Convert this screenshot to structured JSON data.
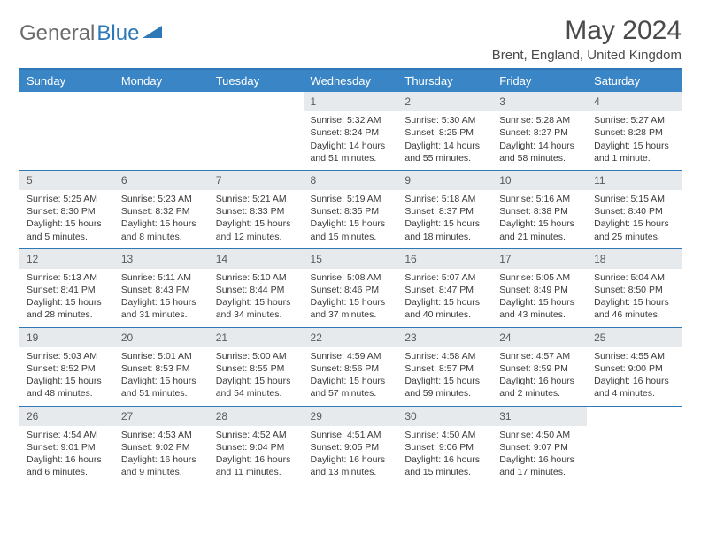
{
  "logo": {
    "text1": "General",
    "text2": "Blue"
  },
  "title": "May 2024",
  "location": "Brent, England, United Kingdom",
  "colors": {
    "header_bg": "#3a85c6",
    "header_text": "#ffffff",
    "daynum_bg": "#e7eaed",
    "border": "#2f78b7",
    "body_text": "#3a3a3a",
    "title_text": "#4a4a4a",
    "logo_gray": "#6b6b6b",
    "logo_blue": "#2f78b7"
  },
  "daysOfWeek": [
    "Sunday",
    "Monday",
    "Tuesday",
    "Wednesday",
    "Thursday",
    "Friday",
    "Saturday"
  ],
  "weeks": [
    [
      null,
      null,
      null,
      {
        "n": "1",
        "sr": "5:32 AM",
        "ss": "8:24 PM",
        "dl": "14 hours and 51 minutes."
      },
      {
        "n": "2",
        "sr": "5:30 AM",
        "ss": "8:25 PM",
        "dl": "14 hours and 55 minutes."
      },
      {
        "n": "3",
        "sr": "5:28 AM",
        "ss": "8:27 PM",
        "dl": "14 hours and 58 minutes."
      },
      {
        "n": "4",
        "sr": "5:27 AM",
        "ss": "8:28 PM",
        "dl": "15 hours and 1 minute."
      }
    ],
    [
      {
        "n": "5",
        "sr": "5:25 AM",
        "ss": "8:30 PM",
        "dl": "15 hours and 5 minutes."
      },
      {
        "n": "6",
        "sr": "5:23 AM",
        "ss": "8:32 PM",
        "dl": "15 hours and 8 minutes."
      },
      {
        "n": "7",
        "sr": "5:21 AM",
        "ss": "8:33 PM",
        "dl": "15 hours and 12 minutes."
      },
      {
        "n": "8",
        "sr": "5:19 AM",
        "ss": "8:35 PM",
        "dl": "15 hours and 15 minutes."
      },
      {
        "n": "9",
        "sr": "5:18 AM",
        "ss": "8:37 PM",
        "dl": "15 hours and 18 minutes."
      },
      {
        "n": "10",
        "sr": "5:16 AM",
        "ss": "8:38 PM",
        "dl": "15 hours and 21 minutes."
      },
      {
        "n": "11",
        "sr": "5:15 AM",
        "ss": "8:40 PM",
        "dl": "15 hours and 25 minutes."
      }
    ],
    [
      {
        "n": "12",
        "sr": "5:13 AM",
        "ss": "8:41 PM",
        "dl": "15 hours and 28 minutes."
      },
      {
        "n": "13",
        "sr": "5:11 AM",
        "ss": "8:43 PM",
        "dl": "15 hours and 31 minutes."
      },
      {
        "n": "14",
        "sr": "5:10 AM",
        "ss": "8:44 PM",
        "dl": "15 hours and 34 minutes."
      },
      {
        "n": "15",
        "sr": "5:08 AM",
        "ss": "8:46 PM",
        "dl": "15 hours and 37 minutes."
      },
      {
        "n": "16",
        "sr": "5:07 AM",
        "ss": "8:47 PM",
        "dl": "15 hours and 40 minutes."
      },
      {
        "n": "17",
        "sr": "5:05 AM",
        "ss": "8:49 PM",
        "dl": "15 hours and 43 minutes."
      },
      {
        "n": "18",
        "sr": "5:04 AM",
        "ss": "8:50 PM",
        "dl": "15 hours and 46 minutes."
      }
    ],
    [
      {
        "n": "19",
        "sr": "5:03 AM",
        "ss": "8:52 PM",
        "dl": "15 hours and 48 minutes."
      },
      {
        "n": "20",
        "sr": "5:01 AM",
        "ss": "8:53 PM",
        "dl": "15 hours and 51 minutes."
      },
      {
        "n": "21",
        "sr": "5:00 AM",
        "ss": "8:55 PM",
        "dl": "15 hours and 54 minutes."
      },
      {
        "n": "22",
        "sr": "4:59 AM",
        "ss": "8:56 PM",
        "dl": "15 hours and 57 minutes."
      },
      {
        "n": "23",
        "sr": "4:58 AM",
        "ss": "8:57 PM",
        "dl": "15 hours and 59 minutes."
      },
      {
        "n": "24",
        "sr": "4:57 AM",
        "ss": "8:59 PM",
        "dl": "16 hours and 2 minutes."
      },
      {
        "n": "25",
        "sr": "4:55 AM",
        "ss": "9:00 PM",
        "dl": "16 hours and 4 minutes."
      }
    ],
    [
      {
        "n": "26",
        "sr": "4:54 AM",
        "ss": "9:01 PM",
        "dl": "16 hours and 6 minutes."
      },
      {
        "n": "27",
        "sr": "4:53 AM",
        "ss": "9:02 PM",
        "dl": "16 hours and 9 minutes."
      },
      {
        "n": "28",
        "sr": "4:52 AM",
        "ss": "9:04 PM",
        "dl": "16 hours and 11 minutes."
      },
      {
        "n": "29",
        "sr": "4:51 AM",
        "ss": "9:05 PM",
        "dl": "16 hours and 13 minutes."
      },
      {
        "n": "30",
        "sr": "4:50 AM",
        "ss": "9:06 PM",
        "dl": "16 hours and 15 minutes."
      },
      {
        "n": "31",
        "sr": "4:50 AM",
        "ss": "9:07 PM",
        "dl": "16 hours and 17 minutes."
      },
      null
    ]
  ],
  "labels": {
    "sunrise": "Sunrise:",
    "sunset": "Sunset:",
    "daylight": "Daylight:"
  }
}
